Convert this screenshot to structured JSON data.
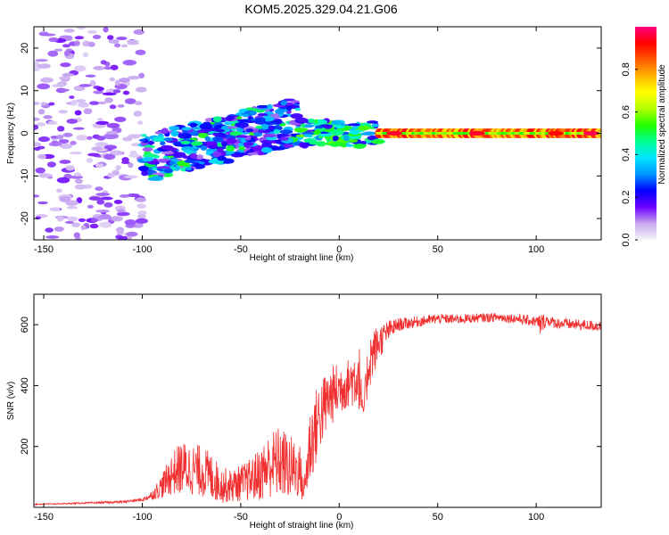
{
  "chart_data": [
    {
      "type": "heatmap",
      "title": "KOM5.2025.329.04.21.G06",
      "xlabel": "Height of straight line (km)",
      "ylabel": "Frequency (Hz)",
      "xlim": [
        -155,
        133
      ],
      "ylim": [
        -25,
        25
      ],
      "xticks": [
        -150,
        -100,
        -50,
        0,
        50,
        100
      ],
      "yticks": [
        -20,
        -10,
        0,
        10,
        20
      ],
      "colorbar": {
        "label": "Normalized spectral amplitude",
        "range": [
          0,
          1
        ],
        "ticks": [
          0.0,
          0.2,
          0.4,
          0.6,
          0.8
        ],
        "colors": [
          "#f6f6f6",
          "#c8a8f0",
          "#6a00ff",
          "#0000ff",
          "#0096ff",
          "#00e6ff",
          "#00ff90",
          "#20ff00",
          "#b4ff00",
          "#ffff00",
          "#ffb400",
          "#ff5a00",
          "#ff0000",
          "#ff0080"
        ]
      },
      "features": [
        {
          "name": "scattered low-amplitude noise",
          "x_range": [
            -155,
            -100
          ],
          "freq_range": [
            -25,
            25
          ],
          "amplitude": 0.1
        },
        {
          "name": "weak wideband patches",
          "x_range": [
            -100,
            -20
          ],
          "freq_range": [
            -10,
            8
          ],
          "amplitude": 0.25
        },
        {
          "name": "transition band",
          "x_range": [
            -20,
            20
          ],
          "freq_range": [
            -3,
            3
          ],
          "amplitude": 0.4
        },
        {
          "name": "strong narrow carrier",
          "x_range": [
            20,
            133
          ],
          "freq_range": [
            -1,
            1
          ],
          "amplitude": 0.95
        }
      ]
    },
    {
      "type": "line",
      "xlabel": "Height of straight line (km)",
      "ylabel": "SNR (v/v)",
      "xlim": [
        -155,
        133
      ],
      "ylim": [
        0,
        700
      ],
      "xticks": [
        -150,
        -100,
        -50,
        0,
        50,
        100
      ],
      "yticks": [
        200,
        400,
        600
      ],
      "series": [
        {
          "name": "SNR",
          "color": "#f03030",
          "x": [
            -155,
            -140,
            -125,
            -110,
            -100,
            -95,
            -90,
            -85,
            -80,
            -75,
            -70,
            -65,
            -60,
            -55,
            -50,
            -45,
            -40,
            -35,
            -30,
            -25,
            -20,
            -18,
            -15,
            -10,
            -5,
            0,
            5,
            10,
            12,
            15,
            20,
            25,
            30,
            40,
            50,
            60,
            70,
            80,
            90,
            100,
            102,
            105,
            110,
            120,
            133
          ],
          "y": [
            10,
            12,
            15,
            18,
            25,
            40,
            70,
            110,
            130,
            125,
            120,
            100,
            75,
            70,
            80,
            90,
            110,
            140,
            150,
            130,
            120,
            50,
            200,
            300,
            360,
            390,
            410,
            440,
            300,
            480,
            540,
            580,
            600,
            610,
            620,
            618,
            622,
            625,
            620,
            610,
            600,
            615,
            605,
            600,
            595
          ],
          "noise": [
            2,
            2,
            3,
            4,
            6,
            15,
            40,
            70,
            90,
            85,
            85,
            80,
            60,
            55,
            60,
            70,
            90,
            110,
            120,
            110,
            90,
            40,
            140,
            120,
            100,
            90,
            80,
            120,
            30,
            100,
            60,
            35,
            22,
            18,
            16,
            16,
            15,
            15,
            16,
            18,
            40,
            18,
            18,
            18,
            18
          ]
        }
      ]
    }
  ]
}
